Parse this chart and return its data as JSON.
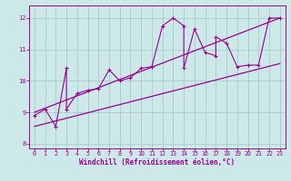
{
  "x_data": [
    0,
    1,
    2,
    3,
    3,
    4,
    5,
    6,
    7,
    8,
    9,
    10,
    11,
    12,
    13,
    14,
    14,
    15,
    16,
    17,
    17,
    18,
    19,
    20,
    21,
    22,
    23
  ],
  "y_data": [
    8.9,
    9.1,
    8.55,
    10.4,
    9.1,
    9.6,
    9.7,
    9.75,
    10.35,
    10.0,
    10.1,
    10.4,
    10.45,
    11.75,
    12.0,
    11.75,
    10.4,
    11.65,
    10.9,
    10.8,
    11.4,
    11.2,
    10.45,
    10.5,
    10.5,
    12.0,
    12.0
  ],
  "line1_x": [
    0,
    23
  ],
  "line1_y": [
    9.0,
    12.0
  ],
  "line2_x": [
    0,
    23
  ],
  "line2_y": [
    8.55,
    10.55
  ],
  "xlabel": "Windchill (Refroidissement éolien,°C)",
  "ylim": [
    7.85,
    12.4
  ],
  "xlim": [
    -0.5,
    23.5
  ],
  "yticks": [
    8,
    9,
    10,
    11,
    12
  ],
  "xticks": [
    0,
    1,
    2,
    3,
    4,
    5,
    6,
    7,
    8,
    9,
    10,
    11,
    12,
    13,
    14,
    15,
    16,
    17,
    18,
    19,
    20,
    21,
    22,
    23
  ],
  "line_color": "#990099",
  "bg_color": "#cce8e8",
  "grid_color": "#aacccc"
}
